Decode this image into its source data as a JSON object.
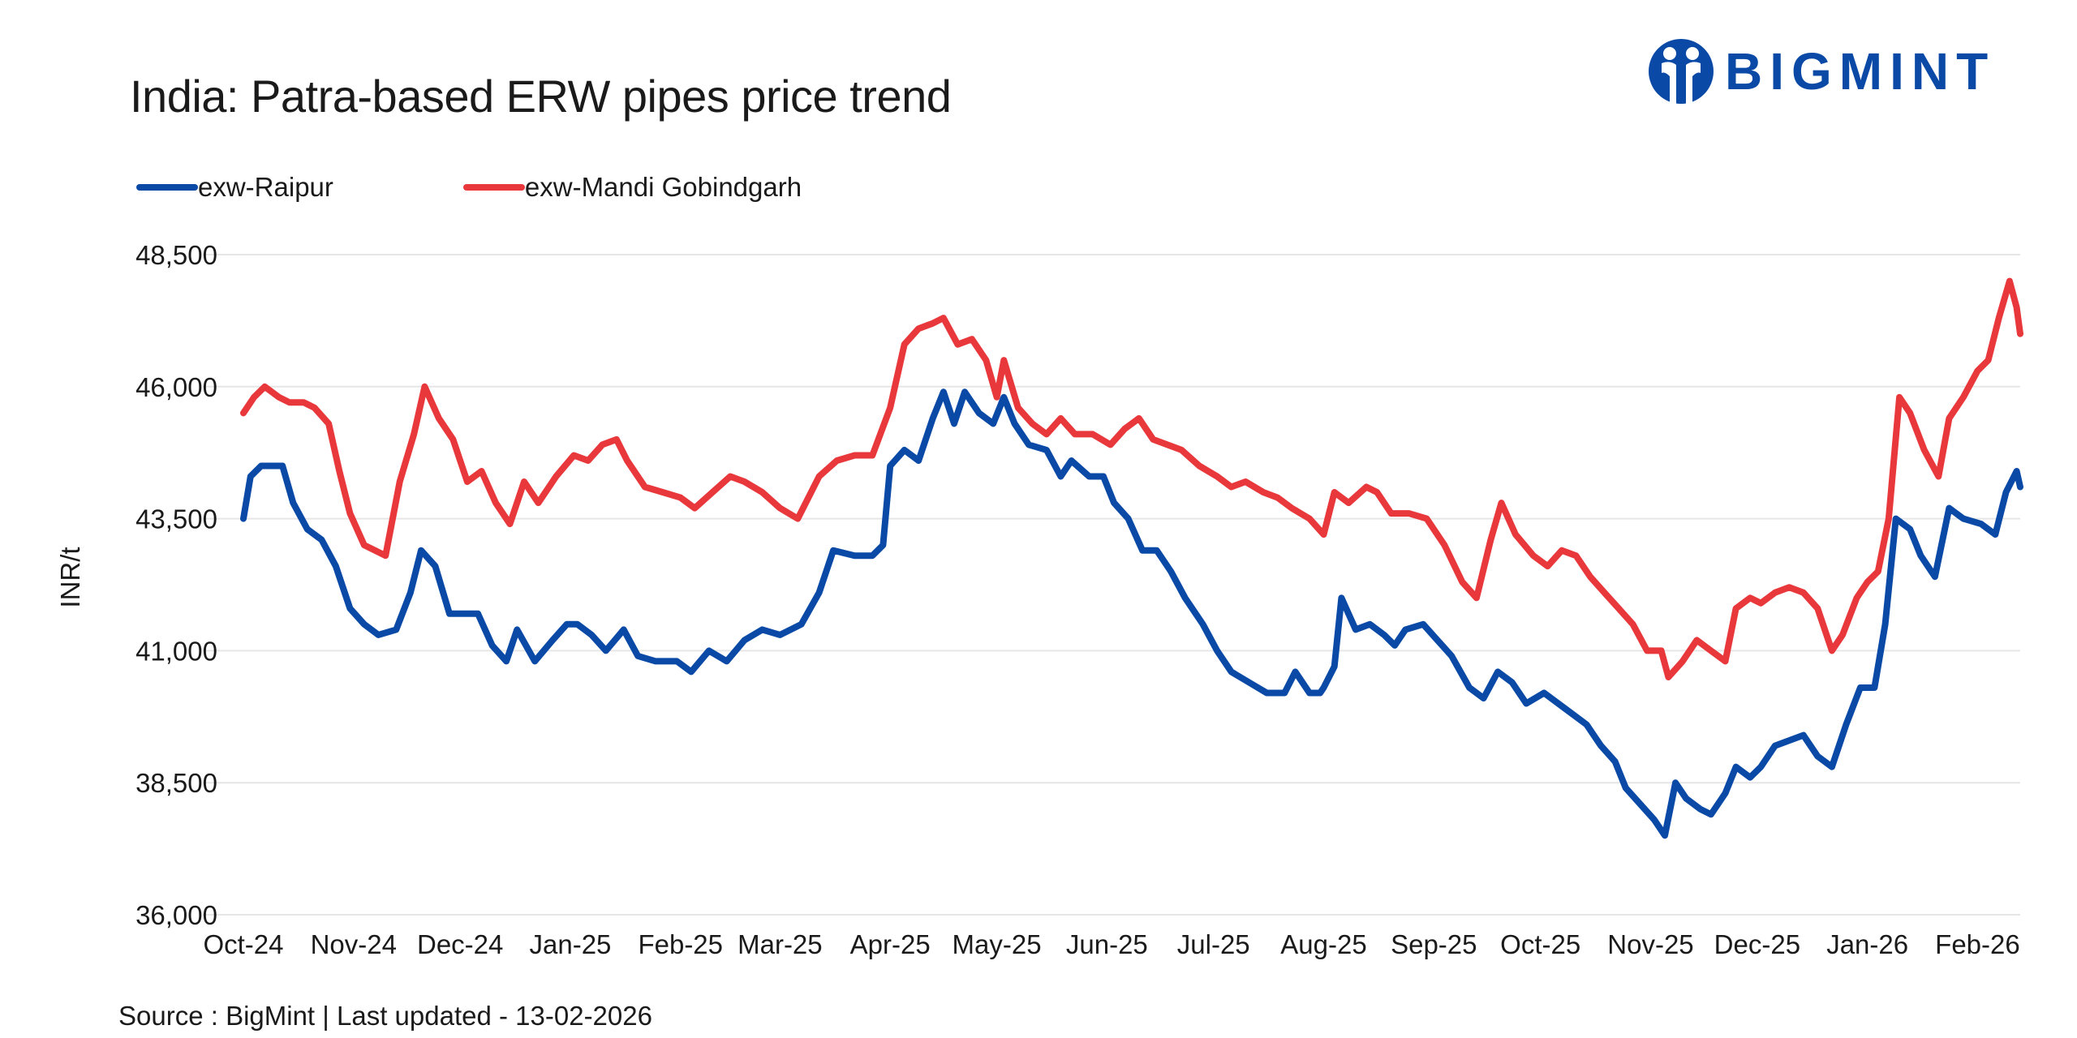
{
  "header": {
    "title": "India: Patra-based ERW pipes price trend",
    "brand": "BIGMINT"
  },
  "footer": {
    "source": "Source : BigMint | Last updated - 13-02-2026"
  },
  "colors": {
    "raipur": "#0a4aa6",
    "mandi": "#e8383b",
    "grid": "#e6e6e6",
    "brand": "#0a4aa6"
  },
  "chart_data": {
    "type": "line",
    "ylabel": "INR/t",
    "xlabel": "",
    "ylim": [
      36000,
      48500
    ],
    "yticks": [
      36000,
      38500,
      41000,
      43500,
      46000,
      48500
    ],
    "ytick_labels": [
      "36,000",
      "38,500",
      "41,000",
      "43,500",
      "46,000",
      "48,500"
    ],
    "x_start": "2024-10-01",
    "x_end": "2026-02-13",
    "xticks": [
      "2024-10-01",
      "2024-11-01",
      "2024-12-01",
      "2025-01-01",
      "2025-02-01",
      "2025-03-01",
      "2025-04-01",
      "2025-05-01",
      "2025-06-01",
      "2025-07-01",
      "2025-08-01",
      "2025-09-01",
      "2025-10-01",
      "2025-11-01",
      "2025-12-01",
      "2026-01-01",
      "2026-02-01"
    ],
    "xtick_labels": [
      "Oct-24",
      "Nov-24",
      "Dec-24",
      "Jan-25",
      "Feb-25",
      "Mar-25",
      "Apr-25",
      "May-25",
      "Jun-25",
      "Jul-25",
      "Aug-25",
      "Sep-25",
      "Oct-25",
      "Nov-25",
      "Dec-25",
      "Jan-26",
      "Feb-26"
    ],
    "grid": true,
    "legend_position": "top-left",
    "series": [
      {
        "name": "exw-Raipur",
        "points": [
          [
            "2024-10-01",
            43500
          ],
          [
            "2024-10-03",
            44300
          ],
          [
            "2024-10-06",
            44500
          ],
          [
            "2024-10-12",
            44500
          ],
          [
            "2024-10-15",
            43800
          ],
          [
            "2024-10-19",
            43300
          ],
          [
            "2024-10-23",
            43100
          ],
          [
            "2024-10-27",
            42600
          ],
          [
            "2024-10-31",
            41800
          ],
          [
            "2024-11-04",
            41500
          ],
          [
            "2024-11-08",
            41300
          ],
          [
            "2024-11-13",
            41400
          ],
          [
            "2024-11-17",
            42100
          ],
          [
            "2024-11-20",
            42900
          ],
          [
            "2024-11-24",
            42600
          ],
          [
            "2024-11-28",
            41700
          ],
          [
            "2024-12-02",
            41700
          ],
          [
            "2024-12-06",
            41700
          ],
          [
            "2024-12-10",
            41100
          ],
          [
            "2024-12-14",
            40800
          ],
          [
            "2024-12-17",
            41400
          ],
          [
            "2024-12-22",
            40800
          ],
          [
            "2024-12-27",
            41200
          ],
          [
            "2024-12-31",
            41500
          ],
          [
            "2025-01-03",
            41500
          ],
          [
            "2025-01-07",
            41300
          ],
          [
            "2025-01-11",
            41000
          ],
          [
            "2025-01-16",
            41400
          ],
          [
            "2025-01-20",
            40900
          ],
          [
            "2025-01-25",
            40800
          ],
          [
            "2025-01-31",
            40800
          ],
          [
            "2025-02-04",
            40600
          ],
          [
            "2025-02-09",
            41000
          ],
          [
            "2025-02-14",
            40800
          ],
          [
            "2025-02-19",
            41200
          ],
          [
            "2025-02-24",
            41400
          ],
          [
            "2025-03-01",
            41300
          ],
          [
            "2025-03-07",
            41500
          ],
          [
            "2025-03-12",
            42100
          ],
          [
            "2025-03-16",
            42900
          ],
          [
            "2025-03-22",
            42800
          ],
          [
            "2025-03-27",
            42800
          ],
          [
            "2025-03-30",
            43000
          ],
          [
            "2025-04-01",
            44500
          ],
          [
            "2025-04-05",
            44800
          ],
          [
            "2025-04-09",
            44600
          ],
          [
            "2025-04-13",
            45400
          ],
          [
            "2025-04-16",
            45900
          ],
          [
            "2025-04-19",
            45300
          ],
          [
            "2025-04-22",
            45900
          ],
          [
            "2025-04-26",
            45500
          ],
          [
            "2025-04-30",
            45300
          ],
          [
            "2025-05-03",
            45800
          ],
          [
            "2025-05-06",
            45300
          ],
          [
            "2025-05-10",
            44900
          ],
          [
            "2025-05-15",
            44800
          ],
          [
            "2025-05-19",
            44300
          ],
          [
            "2025-05-22",
            44600
          ],
          [
            "2025-05-27",
            44300
          ],
          [
            "2025-05-31",
            44300
          ],
          [
            "2025-06-03",
            43800
          ],
          [
            "2025-06-07",
            43500
          ],
          [
            "2025-06-11",
            42900
          ],
          [
            "2025-06-15",
            42900
          ],
          [
            "2025-06-19",
            42500
          ],
          [
            "2025-06-23",
            42000
          ],
          [
            "2025-06-28",
            41500
          ],
          [
            "2025-07-02",
            41000
          ],
          [
            "2025-07-06",
            40600
          ],
          [
            "2025-07-11",
            40400
          ],
          [
            "2025-07-16",
            40200
          ],
          [
            "2025-07-21",
            40200
          ],
          [
            "2025-07-24",
            40600
          ],
          [
            "2025-07-28",
            40200
          ],
          [
            "2025-07-31",
            40200
          ],
          [
            "2025-08-01",
            40300
          ],
          [
            "2025-08-04",
            40700
          ],
          [
            "2025-08-06",
            42000
          ],
          [
            "2025-08-10",
            41400
          ],
          [
            "2025-08-14",
            41500
          ],
          [
            "2025-08-18",
            41300
          ],
          [
            "2025-08-21",
            41100
          ],
          [
            "2025-08-24",
            41400
          ],
          [
            "2025-08-29",
            41500
          ],
          [
            "2025-09-02",
            41200
          ],
          [
            "2025-09-06",
            40900
          ],
          [
            "2025-09-11",
            40300
          ],
          [
            "2025-09-15",
            40100
          ],
          [
            "2025-09-19",
            40600
          ],
          [
            "2025-09-23",
            40400
          ],
          [
            "2025-09-27",
            40000
          ],
          [
            "2025-10-02",
            40200
          ],
          [
            "2025-10-06",
            40000
          ],
          [
            "2025-10-10",
            39800
          ],
          [
            "2025-10-14",
            39600
          ],
          [
            "2025-10-18",
            39200
          ],
          [
            "2025-10-22",
            38900
          ],
          [
            "2025-10-25",
            38400
          ],
          [
            "2025-10-29",
            38100
          ],
          [
            "2025-11-02",
            37800
          ],
          [
            "2025-11-05",
            37500
          ],
          [
            "2025-11-08",
            38500
          ],
          [
            "2025-11-11",
            38200
          ],
          [
            "2025-11-15",
            38000
          ],
          [
            "2025-11-18",
            37900
          ],
          [
            "2025-11-22",
            38300
          ],
          [
            "2025-11-25",
            38800
          ],
          [
            "2025-11-29",
            38600
          ],
          [
            "2025-12-02",
            38800
          ],
          [
            "2025-12-06",
            39200
          ],
          [
            "2025-12-10",
            39300
          ],
          [
            "2025-12-14",
            39400
          ],
          [
            "2025-12-18",
            39000
          ],
          [
            "2025-12-22",
            38800
          ],
          [
            "2025-12-26",
            39600
          ],
          [
            "2025-12-30",
            40300
          ],
          [
            "2026-01-03",
            40300
          ],
          [
            "2026-01-06",
            41500
          ],
          [
            "2026-01-09",
            43500
          ],
          [
            "2026-01-13",
            43300
          ],
          [
            "2026-01-16",
            42800
          ],
          [
            "2026-01-20",
            42400
          ],
          [
            "2026-01-24",
            43700
          ],
          [
            "2026-01-28",
            43500
          ],
          [
            "2026-02-02",
            43400
          ],
          [
            "2026-02-06",
            43200
          ],
          [
            "2026-02-09",
            44000
          ],
          [
            "2026-02-12",
            44400
          ],
          [
            "2026-02-13",
            44100
          ]
        ]
      },
      {
        "name": "exw-Mandi Gobindgarh",
        "points": [
          [
            "2024-10-01",
            45500
          ],
          [
            "2024-10-04",
            45800
          ],
          [
            "2024-10-07",
            46000
          ],
          [
            "2024-10-11",
            45800
          ],
          [
            "2024-10-14",
            45700
          ],
          [
            "2024-10-18",
            45700
          ],
          [
            "2024-10-21",
            45600
          ],
          [
            "2024-10-25",
            45300
          ],
          [
            "2024-10-28",
            44400
          ],
          [
            "2024-10-31",
            43600
          ],
          [
            "2024-11-04",
            43000
          ],
          [
            "2024-11-10",
            42800
          ],
          [
            "2024-11-14",
            44200
          ],
          [
            "2024-11-18",
            45100
          ],
          [
            "2024-11-21",
            46000
          ],
          [
            "2024-11-25",
            45400
          ],
          [
            "2024-11-29",
            45000
          ],
          [
            "2024-12-03",
            44200
          ],
          [
            "2024-12-07",
            44400
          ],
          [
            "2024-12-11",
            43800
          ],
          [
            "2024-12-15",
            43400
          ],
          [
            "2024-12-19",
            44200
          ],
          [
            "2024-12-23",
            43800
          ],
          [
            "2024-12-28",
            44300
          ],
          [
            "2025-01-02",
            44700
          ],
          [
            "2025-01-06",
            44600
          ],
          [
            "2025-01-10",
            44900
          ],
          [
            "2025-01-14",
            45000
          ],
          [
            "2025-01-17",
            44600
          ],
          [
            "2025-01-22",
            44100
          ],
          [
            "2025-01-27",
            44000
          ],
          [
            "2025-02-01",
            43900
          ],
          [
            "2025-02-05",
            43700
          ],
          [
            "2025-02-10",
            44000
          ],
          [
            "2025-02-15",
            44300
          ],
          [
            "2025-02-19",
            44200
          ],
          [
            "2025-02-24",
            44000
          ],
          [
            "2025-03-01",
            43700
          ],
          [
            "2025-03-06",
            43500
          ],
          [
            "2025-03-12",
            44300
          ],
          [
            "2025-03-17",
            44600
          ],
          [
            "2025-03-22",
            44700
          ],
          [
            "2025-03-27",
            44700
          ],
          [
            "2025-04-01",
            45600
          ],
          [
            "2025-04-05",
            46800
          ],
          [
            "2025-04-09",
            47100
          ],
          [
            "2025-04-13",
            47200
          ],
          [
            "2025-04-16",
            47300
          ],
          [
            "2025-04-20",
            46800
          ],
          [
            "2025-04-24",
            46900
          ],
          [
            "2025-04-28",
            46500
          ],
          [
            "2025-05-01",
            45800
          ],
          [
            "2025-05-03",
            46500
          ],
          [
            "2025-05-07",
            45600
          ],
          [
            "2025-05-11",
            45300
          ],
          [
            "2025-05-15",
            45100
          ],
          [
            "2025-05-19",
            45400
          ],
          [
            "2025-05-23",
            45100
          ],
          [
            "2025-05-28",
            45100
          ],
          [
            "2025-06-02",
            44900
          ],
          [
            "2025-06-06",
            45200
          ],
          [
            "2025-06-10",
            45400
          ],
          [
            "2025-06-14",
            45000
          ],
          [
            "2025-06-18",
            44900
          ],
          [
            "2025-06-22",
            44800
          ],
          [
            "2025-06-27",
            44500
          ],
          [
            "2025-07-02",
            44300
          ],
          [
            "2025-07-06",
            44100
          ],
          [
            "2025-07-10",
            44200
          ],
          [
            "2025-07-15",
            44000
          ],
          [
            "2025-07-19",
            43900
          ],
          [
            "2025-07-23",
            43700
          ],
          [
            "2025-07-28",
            43500
          ],
          [
            "2025-08-01",
            43200
          ],
          [
            "2025-08-04",
            44000
          ],
          [
            "2025-08-08",
            43800
          ],
          [
            "2025-08-13",
            44100
          ],
          [
            "2025-08-16",
            44000
          ],
          [
            "2025-08-20",
            43600
          ],
          [
            "2025-08-25",
            43600
          ],
          [
            "2025-08-30",
            43500
          ],
          [
            "2025-09-04",
            43000
          ],
          [
            "2025-09-09",
            42300
          ],
          [
            "2025-09-13",
            42000
          ],
          [
            "2025-09-17",
            43100
          ],
          [
            "2025-09-20",
            43800
          ],
          [
            "2025-09-24",
            43200
          ],
          [
            "2025-09-29",
            42800
          ],
          [
            "2025-10-03",
            42600
          ],
          [
            "2025-10-07",
            42900
          ],
          [
            "2025-10-11",
            42800
          ],
          [
            "2025-10-15",
            42400
          ],
          [
            "2025-10-19",
            42100
          ],
          [
            "2025-10-23",
            41800
          ],
          [
            "2025-10-27",
            41500
          ],
          [
            "2025-10-31",
            41000
          ],
          [
            "2025-11-04",
            41000
          ],
          [
            "2025-11-06",
            40500
          ],
          [
            "2025-11-10",
            40800
          ],
          [
            "2025-11-14",
            41200
          ],
          [
            "2025-11-18",
            41000
          ],
          [
            "2025-11-22",
            40800
          ],
          [
            "2025-11-25",
            41800
          ],
          [
            "2025-11-29",
            42000
          ],
          [
            "2025-12-02",
            41900
          ],
          [
            "2025-12-06",
            42100
          ],
          [
            "2025-12-10",
            42200
          ],
          [
            "2025-12-14",
            42100
          ],
          [
            "2025-12-18",
            41800
          ],
          [
            "2025-12-22",
            41000
          ],
          [
            "2025-12-25",
            41300
          ],
          [
            "2025-12-29",
            42000
          ],
          [
            "2026-01-01",
            42300
          ],
          [
            "2026-01-04",
            42500
          ],
          [
            "2026-01-07",
            43500
          ],
          [
            "2026-01-10",
            45800
          ],
          [
            "2026-01-13",
            45500
          ],
          [
            "2026-01-17",
            44800
          ],
          [
            "2026-01-21",
            44300
          ],
          [
            "2026-01-24",
            45400
          ],
          [
            "2026-01-28",
            45800
          ],
          [
            "2026-02-01",
            46300
          ],
          [
            "2026-02-04",
            46500
          ],
          [
            "2026-02-07",
            47300
          ],
          [
            "2026-02-10",
            48000
          ],
          [
            "2026-02-12",
            47500
          ],
          [
            "2026-02-13",
            47000
          ]
        ]
      }
    ]
  }
}
